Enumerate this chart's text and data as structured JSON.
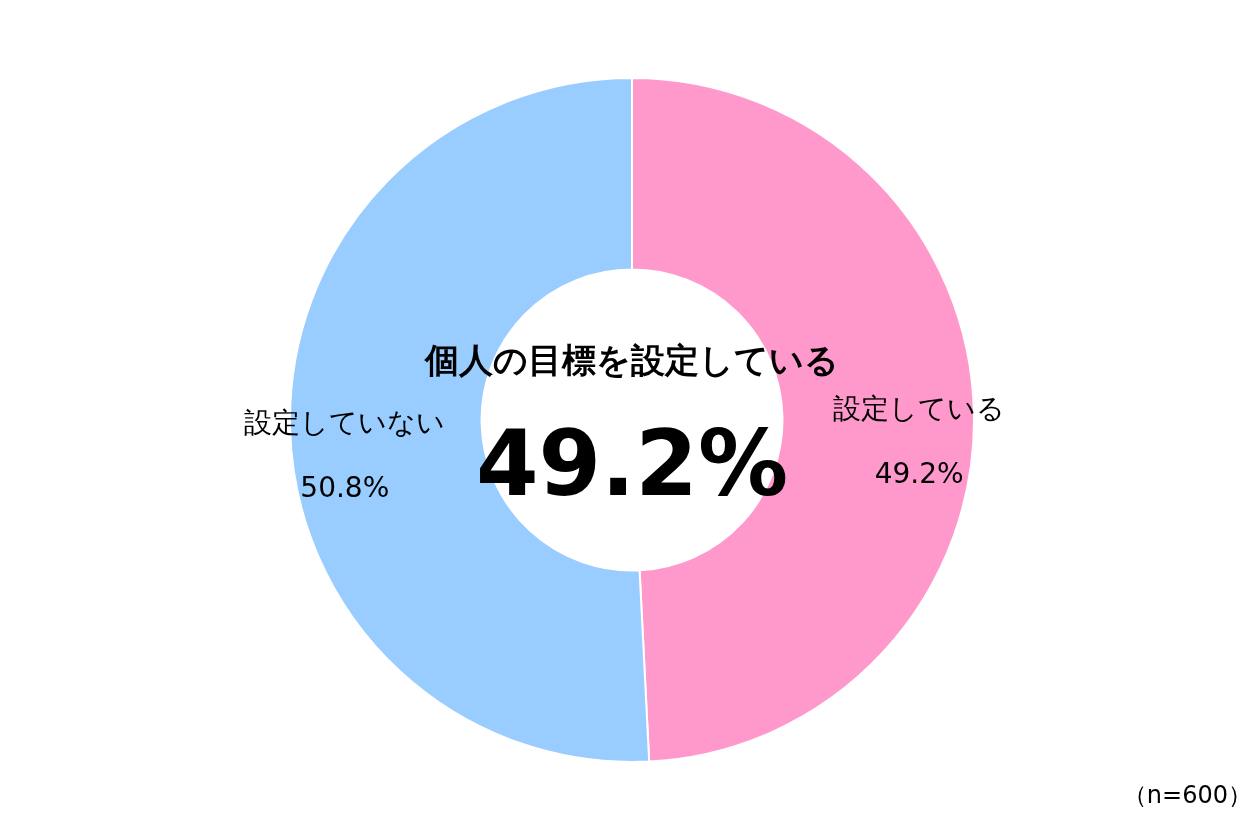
{
  "chart_data": {
    "type": "donut",
    "title": "個人の目標を設定している",
    "categories": [
      "設定している",
      "設定していない"
    ],
    "values": [
      49.2,
      50.8
    ],
    "colors": [
      "#ff99cc",
      "#99ccff"
    ],
    "value_labels": [
      "49.2%",
      "50.8%"
    ],
    "annotations": [
      "49.2%",
      "（n=600）"
    ]
  }
}
